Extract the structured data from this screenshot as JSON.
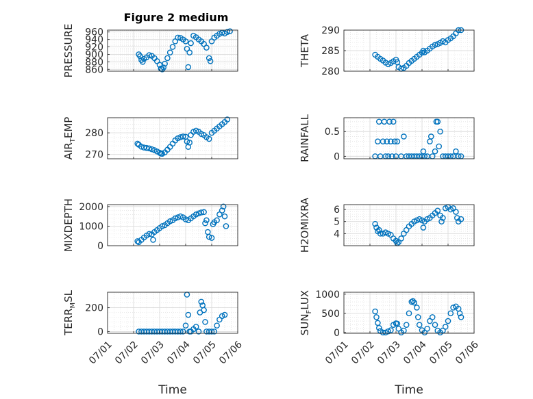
{
  "figure": {
    "title": "Figure 2 medium",
    "xlabel": "Time",
    "xticks": [
      "07/01",
      "07/02",
      "07/03",
      "07/04",
      "07/05",
      "07/06"
    ],
    "marker_color": "#0072BD",
    "grid_color": "#dcdcdc"
  },
  "chart_data": [
    {
      "type": "scatter",
      "ylabel": {
        "main": "PRESSURE",
        "sub": ""
      },
      "ylim": [
        855,
        965
      ],
      "yticks": [
        860,
        880,
        900,
        920,
        940,
        960
      ],
      "points": [
        [
          1.2,
          900
        ],
        [
          1.25,
          895
        ],
        [
          1.3,
          885
        ],
        [
          1.35,
          880
        ],
        [
          1.4,
          888
        ],
        [
          1.5,
          892
        ],
        [
          1.6,
          898
        ],
        [
          1.7,
          896
        ],
        [
          1.8,
          890
        ],
        [
          1.9,
          882
        ],
        [
          2.0,
          872
        ],
        [
          2.05,
          862
        ],
        [
          2.1,
          860
        ],
        [
          2.15,
          865
        ],
        [
          2.2,
          875
        ],
        [
          2.3,
          890
        ],
        [
          2.4,
          905
        ],
        [
          2.5,
          920
        ],
        [
          2.6,
          935
        ],
        [
          2.7,
          945
        ],
        [
          2.8,
          944
        ],
        [
          2.9,
          940
        ],
        [
          3.0,
          935
        ],
        [
          3.05,
          915
        ],
        [
          3.1,
          866
        ],
        [
          3.15,
          905
        ],
        [
          3.2,
          930
        ],
        [
          3.3,
          950
        ],
        [
          3.4,
          946
        ],
        [
          3.5,
          940
        ],
        [
          3.6,
          935
        ],
        [
          3.7,
          928
        ],
        [
          3.8,
          918
        ],
        [
          3.9,
          890
        ],
        [
          3.95,
          882
        ],
        [
          4.0,
          935
        ],
        [
          4.1,
          945
        ],
        [
          4.2,
          950
        ],
        [
          4.3,
          955
        ],
        [
          4.4,
          958
        ],
        [
          4.5,
          956
        ],
        [
          4.6,
          960
        ],
        [
          4.7,
          962
        ]
      ]
    },
    {
      "type": "scatter",
      "ylabel": {
        "main": "THETA",
        "sub": ""
      },
      "ylim": [
        280,
        290
      ],
      "yticks": [
        280,
        285,
        290
      ],
      "points": [
        [
          1.2,
          284
        ],
        [
          1.3,
          283.5
        ],
        [
          1.4,
          283
        ],
        [
          1.5,
          282.6
        ],
        [
          1.6,
          282.1
        ],
        [
          1.7,
          281.7
        ],
        [
          1.8,
          282.0
        ],
        [
          1.9,
          282.4
        ],
        [
          2.0,
          282.8
        ],
        [
          2.05,
          282.2
        ],
        [
          2.1,
          281.0
        ],
        [
          2.2,
          280.6
        ],
        [
          2.3,
          280.8
        ],
        [
          2.4,
          281.3
        ],
        [
          2.5,
          282.0
        ],
        [
          2.6,
          282.5
        ],
        [
          2.7,
          283.0
        ],
        [
          2.8,
          283.5
        ],
        [
          2.9,
          284.0
        ],
        [
          3.0,
          284.5
        ],
        [
          3.05,
          285.0
        ],
        [
          3.1,
          284.6
        ],
        [
          3.2,
          285.0
        ],
        [
          3.3,
          285.5
        ],
        [
          3.4,
          286.0
        ],
        [
          3.5,
          286.4
        ],
        [
          3.6,
          286.6
        ],
        [
          3.7,
          286.9
        ],
        [
          3.8,
          287.3
        ],
        [
          3.9,
          287.0
        ],
        [
          4.0,
          287.6
        ],
        [
          4.1,
          288.0
        ],
        [
          4.2,
          288.5
        ],
        [
          4.3,
          289.2
        ],
        [
          4.4,
          290.0
        ],
        [
          4.5,
          290.0
        ]
      ]
    },
    {
      "type": "scatter",
      "ylabel": {
        "main": "AIR",
        "sub": "T",
        "tail": "EMP"
      },
      "ylim": [
        268,
        287
      ],
      "yticks": [
        270,
        280
      ],
      "points": [
        [
          1.15,
          275
        ],
        [
          1.2,
          274.5
        ],
        [
          1.3,
          273.6
        ],
        [
          1.4,
          273.2
        ],
        [
          1.5,
          273.0
        ],
        [
          1.6,
          272.8
        ],
        [
          1.7,
          272.4
        ],
        [
          1.8,
          272.0
        ],
        [
          1.9,
          271.4
        ],
        [
          2.0,
          270.8
        ],
        [
          2.05,
          270.4
        ],
        [
          2.1,
          270.3
        ],
        [
          2.2,
          271.0
        ],
        [
          2.3,
          272.2
        ],
        [
          2.4,
          273.5
        ],
        [
          2.5,
          275.0
        ],
        [
          2.6,
          276.5
        ],
        [
          2.7,
          277.5
        ],
        [
          2.8,
          278.0
        ],
        [
          2.9,
          278.3
        ],
        [
          3.0,
          278.2
        ],
        [
          3.05,
          276.0
        ],
        [
          3.1,
          273.5
        ],
        [
          3.15,
          275.5
        ],
        [
          3.2,
          279.0
        ],
        [
          3.3,
          280.5
        ],
        [
          3.4,
          281.0
        ],
        [
          3.5,
          280.5
        ],
        [
          3.6,
          279.5
        ],
        [
          3.7,
          279.0
        ],
        [
          3.8,
          278.0
        ],
        [
          3.9,
          277.2
        ],
        [
          4.0,
          280.0
        ],
        [
          4.1,
          281.0
        ],
        [
          4.2,
          282.0
        ],
        [
          4.3,
          283.0
        ],
        [
          4.4,
          284.0
        ],
        [
          4.5,
          285.0
        ],
        [
          4.6,
          286.2
        ]
      ]
    },
    {
      "type": "scatter",
      "ylabel": {
        "main": "RAINFALL",
        "sub": ""
      },
      "ylim": [
        -0.05,
        0.78
      ],
      "yticks": [
        0,
        0.5
      ],
      "points": [
        [
          1.2,
          0
        ],
        [
          1.3,
          0.3
        ],
        [
          1.35,
          0.7
        ],
        [
          1.4,
          0
        ],
        [
          1.5,
          0.3
        ],
        [
          1.55,
          0.7
        ],
        [
          1.6,
          0
        ],
        [
          1.65,
          0.3
        ],
        [
          1.7,
          0
        ],
        [
          1.75,
          0.7
        ],
        [
          1.8,
          0.3
        ],
        [
          1.85,
          0
        ],
        [
          1.9,
          0.7
        ],
        [
          1.95,
          0.3
        ],
        [
          2.0,
          0
        ],
        [
          2.05,
          0.3
        ],
        [
          2.2,
          0
        ],
        [
          2.3,
          0.4
        ],
        [
          2.4,
          0
        ],
        [
          2.5,
          0
        ],
        [
          2.6,
          0
        ],
        [
          2.7,
          0
        ],
        [
          2.8,
          0
        ],
        [
          2.9,
          0
        ],
        [
          3.0,
          0
        ],
        [
          3.05,
          0.1
        ],
        [
          3.1,
          0
        ],
        [
          3.2,
          0
        ],
        [
          3.3,
          0.3
        ],
        [
          3.35,
          0.4
        ],
        [
          3.4,
          0
        ],
        [
          3.5,
          0.1
        ],
        [
          3.55,
          0.7
        ],
        [
          3.6,
          0.7
        ],
        [
          3.65,
          0.2
        ],
        [
          3.7,
          0.5
        ],
        [
          3.8,
          0
        ],
        [
          3.9,
          0
        ],
        [
          4.0,
          0
        ],
        [
          4.1,
          0
        ],
        [
          4.2,
          0
        ],
        [
          4.3,
          0.1
        ],
        [
          4.4,
          0
        ],
        [
          4.5,
          0
        ]
      ]
    },
    {
      "type": "scatter",
      "ylabel": {
        "main": "MIXDEPTH",
        "sub": ""
      },
      "ylim": [
        0,
        2100
      ],
      "yticks": [
        0,
        1000,
        2000
      ],
      "points": [
        [
          1.15,
          230
        ],
        [
          1.2,
          180
        ],
        [
          1.3,
          300
        ],
        [
          1.4,
          420
        ],
        [
          1.5,
          520
        ],
        [
          1.6,
          600
        ],
        [
          1.7,
          580
        ],
        [
          1.75,
          300
        ],
        [
          1.8,
          700
        ],
        [
          1.9,
          800
        ],
        [
          2.0,
          900
        ],
        [
          2.1,
          1000
        ],
        [
          2.2,
          1050
        ],
        [
          2.3,
          1150
        ],
        [
          2.4,
          1250
        ],
        [
          2.5,
          1300
        ],
        [
          2.6,
          1400
        ],
        [
          2.7,
          1450
        ],
        [
          2.8,
          1500
        ],
        [
          2.9,
          1450
        ],
        [
          3.0,
          1350
        ],
        [
          3.1,
          1300
        ],
        [
          3.2,
          1400
        ],
        [
          3.3,
          1500
        ],
        [
          3.4,
          1600
        ],
        [
          3.5,
          1650
        ],
        [
          3.6,
          1700
        ],
        [
          3.7,
          1720
        ],
        [
          3.75,
          1150
        ],
        [
          3.8,
          1300
        ],
        [
          3.85,
          700
        ],
        [
          3.9,
          450
        ],
        [
          4.0,
          400
        ],
        [
          4.05,
          1100
        ],
        [
          4.1,
          1200
        ],
        [
          4.2,
          1300
        ],
        [
          4.3,
          1600
        ],
        [
          4.4,
          1800
        ],
        [
          4.45,
          2000
        ],
        [
          4.5,
          1500
        ],
        [
          4.55,
          1000
        ]
      ]
    },
    {
      "type": "scatter",
      "ylabel": {
        "main": "H2OMIXRA",
        "sub": ""
      },
      "ylim": [
        3,
        6.4
      ],
      "yticks": [
        4,
        5,
        6
      ],
      "points": [
        [
          1.2,
          4.8
        ],
        [
          1.25,
          4.5
        ],
        [
          1.3,
          4.2
        ],
        [
          1.35,
          4.3
        ],
        [
          1.4,
          4.0
        ],
        [
          1.5,
          4.0
        ],
        [
          1.6,
          4.1
        ],
        [
          1.7,
          4.0
        ],
        [
          1.8,
          3.9
        ],
        [
          1.9,
          3.6
        ],
        [
          2.0,
          3.4
        ],
        [
          2.05,
          3.2
        ],
        [
          2.1,
          3.3
        ],
        [
          2.2,
          3.6
        ],
        [
          2.3,
          4.0
        ],
        [
          2.4,
          4.3
        ],
        [
          2.5,
          4.6
        ],
        [
          2.6,
          4.8
        ],
        [
          2.7,
          5.0
        ],
        [
          2.8,
          5.1
        ],
        [
          2.9,
          5.2
        ],
        [
          3.0,
          5.1
        ],
        [
          3.05,
          4.5
        ],
        [
          3.1,
          5.0
        ],
        [
          3.2,
          5.2
        ],
        [
          3.3,
          5.3
        ],
        [
          3.4,
          5.5
        ],
        [
          3.5,
          5.7
        ],
        [
          3.6,
          5.9
        ],
        [
          3.7,
          5.5
        ],
        [
          3.75,
          5.0
        ],
        [
          3.8,
          5.3
        ],
        [
          3.9,
          6.1
        ],
        [
          4.0,
          6.2
        ],
        [
          4.1,
          6.0
        ],
        [
          4.2,
          6.1
        ],
        [
          4.3,
          5.8
        ],
        [
          4.35,
          5.3
        ],
        [
          4.4,
          5.0
        ],
        [
          4.5,
          5.2
        ]
      ]
    },
    {
      "type": "scatter",
      "ylabel": {
        "main": "TERR",
        "sub": "M",
        "tail": "SL"
      },
      "ylim": [
        -15,
        330
      ],
      "yticks": [
        0,
        200
      ],
      "points": [
        [
          1.2,
          0
        ],
        [
          1.3,
          0
        ],
        [
          1.4,
          0
        ],
        [
          1.5,
          0
        ],
        [
          1.6,
          0
        ],
        [
          1.7,
          0
        ],
        [
          1.8,
          0
        ],
        [
          1.9,
          0
        ],
        [
          2.0,
          0
        ],
        [
          2.1,
          0
        ],
        [
          2.2,
          0
        ],
        [
          2.3,
          0
        ],
        [
          2.4,
          0
        ],
        [
          2.5,
          0
        ],
        [
          2.6,
          0
        ],
        [
          2.7,
          0
        ],
        [
          2.8,
          0
        ],
        [
          2.9,
          0
        ],
        [
          3.0,
          50
        ],
        [
          3.05,
          310
        ],
        [
          3.1,
          140
        ],
        [
          3.15,
          0
        ],
        [
          3.2,
          0
        ],
        [
          3.3,
          20
        ],
        [
          3.4,
          40
        ],
        [
          3.5,
          0
        ],
        [
          3.55,
          160
        ],
        [
          3.6,
          250
        ],
        [
          3.65,
          220
        ],
        [
          3.7,
          180
        ],
        [
          3.75,
          80
        ],
        [
          3.8,
          0
        ],
        [
          3.9,
          0
        ],
        [
          4.0,
          0
        ],
        [
          4.1,
          0
        ],
        [
          4.2,
          50
        ],
        [
          4.3,
          100
        ],
        [
          4.4,
          130
        ],
        [
          4.5,
          140
        ]
      ]
    },
    {
      "type": "scatter",
      "ylabel": {
        "main": "SUN",
        "sub": "F",
        "tail": "LUX"
      },
      "ylim": [
        -20,
        1050
      ],
      "yticks": [
        0,
        500,
        1000
      ],
      "points": [
        [
          1.2,
          550
        ],
        [
          1.25,
          400
        ],
        [
          1.3,
          250
        ],
        [
          1.35,
          120
        ],
        [
          1.4,
          40
        ],
        [
          1.5,
          0
        ],
        [
          1.6,
          0
        ],
        [
          1.7,
          30
        ],
        [
          1.8,
          60
        ],
        [
          1.9,
          200
        ],
        [
          2.0,
          240
        ],
        [
          2.05,
          230
        ],
        [
          2.1,
          100
        ],
        [
          2.2,
          0
        ],
        [
          2.3,
          50
        ],
        [
          2.4,
          200
        ],
        [
          2.5,
          500
        ],
        [
          2.6,
          800
        ],
        [
          2.65,
          820
        ],
        [
          2.7,
          780
        ],
        [
          2.8,
          650
        ],
        [
          2.85,
          400
        ],
        [
          2.9,
          200
        ],
        [
          3.0,
          60
        ],
        [
          3.1,
          0
        ],
        [
          3.2,
          100
        ],
        [
          3.3,
          300
        ],
        [
          3.4,
          400
        ],
        [
          3.5,
          200
        ],
        [
          3.6,
          50
        ],
        [
          3.7,
          0
        ],
        [
          3.8,
          50
        ],
        [
          3.9,
          150
        ],
        [
          4.0,
          300
        ],
        [
          4.1,
          500
        ],
        [
          4.2,
          650
        ],
        [
          4.3,
          680
        ],
        [
          4.4,
          620
        ],
        [
          4.45,
          500
        ],
        [
          4.5,
          400
        ]
      ]
    }
  ]
}
